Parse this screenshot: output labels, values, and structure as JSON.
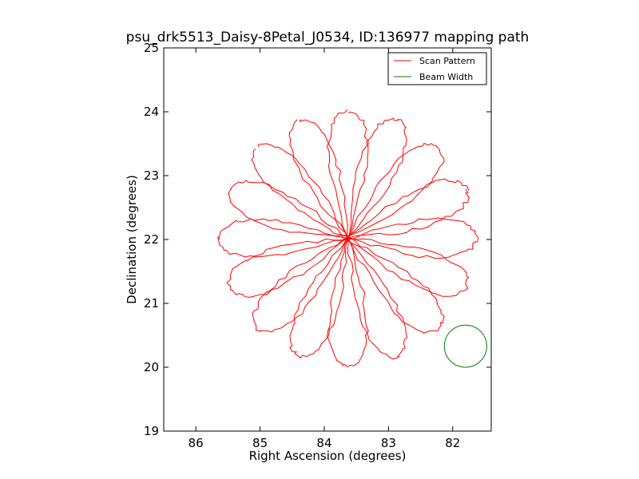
{
  "chart_data": {
    "type": "line",
    "title": "psu_drk5513_Daisy-8Petal_J0534, ID:136977 mapping path",
    "xlabel": "Right Ascension (degrees)",
    "ylabel": "Declination (degrees)",
    "xlim": [
      86.5,
      81.4
    ],
    "ylim": [
      19,
      25
    ],
    "x_inverted": true,
    "xticks": [
      86,
      85,
      84,
      83,
      82
    ],
    "yticks": [
      19,
      20,
      21,
      22,
      23,
      24,
      25
    ],
    "grid": false,
    "legend_position": "top-right",
    "colors": {
      "scan": "#ff0000",
      "beam": "#008000"
    },
    "series": [
      {
        "name": "Scan Pattern",
        "kind": "daisy-path",
        "center": [
          83.63,
          22.02
        ],
        "petals": 8,
        "petal_length_deg": 2.0,
        "petal_half_width_deg": 0.3,
        "noise_deg": 0.03,
        "rotation_deg": 0
      },
      {
        "name": "Beam Width",
        "kind": "circle",
        "center": [
          81.8,
          20.33
        ],
        "radius_deg": 0.33
      }
    ]
  }
}
